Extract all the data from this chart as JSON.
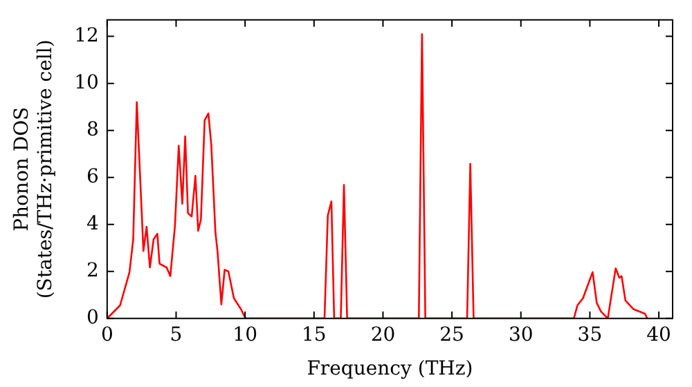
{
  "chart_data": {
    "type": "line",
    "xlabel": "Frequency (THz)",
    "ylabel": "Phonon DOS\n(States/THz·primitive cell)",
    "x": [
      0,
      0.94,
      1.62,
      1.89,
      2.15,
      2.63,
      2.86,
      3.1,
      3.37,
      3.64,
      3.8,
      4.31,
      4.58,
      4.92,
      5.19,
      5.45,
      5.66,
      5.86,
      6.13,
      6.4,
      6.6,
      6.8,
      7.07,
      7.34,
      7.55,
      7.85,
      8.0,
      8.28,
      8.52,
      8.79,
      9.19,
      9.7,
      10.03,
      15.76,
      16.0,
      16.26,
      16.46,
      16.94,
      17.17,
      17.4,
      22.6,
      22.83,
      23.07,
      26.1,
      26.33,
      26.57,
      33.84,
      34.1,
      34.5,
      35.2,
      35.5,
      35.8,
      36.3,
      36.87,
      37.14,
      37.3,
      37.58,
      38.15,
      39.0,
      39.16
    ],
    "series": [
      {
        "color": "#ff0000",
        "values": [
          0,
          0.56,
          1.97,
          3.37,
          9.2,
          2.87,
          3.9,
          2.17,
          3.37,
          3.6,
          2.33,
          2.17,
          1.8,
          3.97,
          7.35,
          4.88,
          7.75,
          4.48,
          4.34,
          6.07,
          3.73,
          4.22,
          8.43,
          8.72,
          7.39,
          3.67,
          2.87,
          0.6,
          2.07,
          2.0,
          0.86,
          0.4,
          0,
          0,
          4.38,
          4.98,
          0,
          0,
          5.68,
          0,
          0,
          12.1,
          0,
          0,
          6.58,
          0,
          0,
          0.56,
          0.86,
          1.97,
          0.66,
          0.3,
          0,
          2.13,
          1.73,
          1.8,
          0.76,
          0.4,
          0.2,
          0
        ]
      }
    ],
    "xlim": [
      0,
      41
    ],
    "xticks": [
      0,
      5,
      10,
      15,
      20,
      25,
      30,
      35,
      40
    ],
    "ylim": [
      0,
      12.7
    ],
    "yticks": [
      0,
      2,
      4,
      6,
      8,
      10,
      12
    ],
    "grid": false,
    "legend": false,
    "marker": "none",
    "line_style": "solid"
  }
}
